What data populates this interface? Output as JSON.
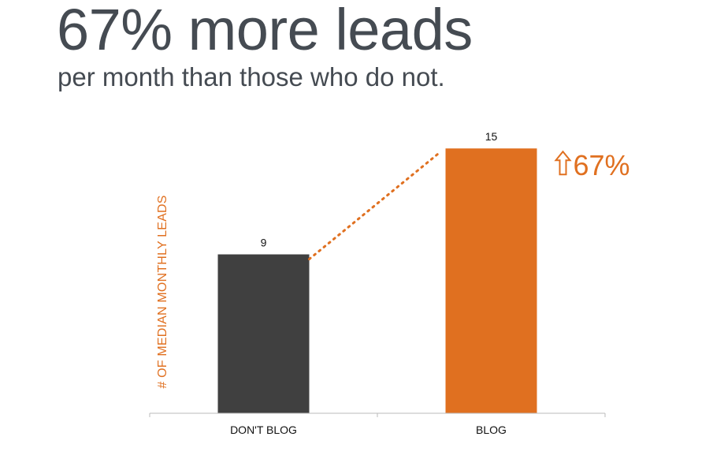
{
  "slide": {
    "headline": "67% more leads",
    "subline": "per month than those who do not."
  },
  "colors": {
    "text_dark": "#454b52",
    "bar_dont_blog": "#404040",
    "bar_blog": "#e07020",
    "accent": "#e07020",
    "axis": "#bbbbbb"
  },
  "chart_data": {
    "type": "bar",
    "categories": [
      "DON'T BLOG",
      "BLOG"
    ],
    "values": [
      9,
      15
    ],
    "ylabel": "# OF MEDIAN MONTHLY LEADS",
    "xlabel": "",
    "ylim": [
      0,
      16
    ],
    "grid": false,
    "legend": "none",
    "annotation": {
      "arrow_icon": "up-arrow-outline-icon",
      "text": "67%",
      "connector": "dotted-line"
    }
  }
}
